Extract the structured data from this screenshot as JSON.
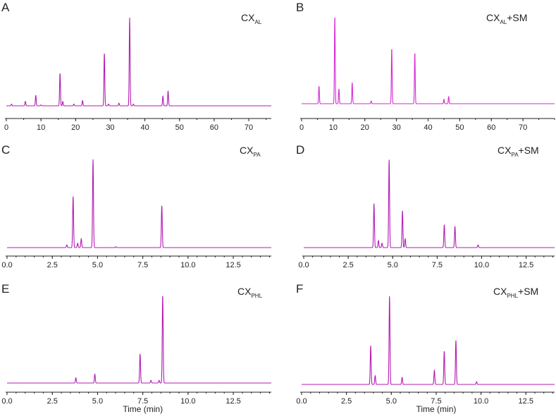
{
  "chart_data": [
    {
      "panel": "A",
      "type": "line",
      "title": {
        "main": "CX",
        "sub": "AL",
        "suffix": ""
      },
      "xlabel": "",
      "xlim": [
        0,
        76.5
      ],
      "xticks": [
        "0",
        "10",
        "20",
        "30",
        "40",
        "50",
        "60",
        "70"
      ],
      "xtick_values": [
        0,
        10,
        20,
        30,
        40,
        50,
        60,
        70
      ],
      "minor_step": 5,
      "grid": false,
      "line_color": "#b31cb3",
      "peaks_rt_min": [
        1.5,
        5.5,
        8.5,
        10,
        15.5,
        16.3,
        19.5,
        22,
        28.3,
        29.5,
        32.5,
        35.6,
        36.7,
        45.2,
        46.7
      ],
      "peaks_rel_height": [
        0.02,
        0.05,
        0.12,
        0.01,
        0.37,
        0.05,
        0.02,
        0.06,
        0.6,
        0.02,
        0.03,
        1.0,
        0.02,
        0.11,
        0.17
      ]
    },
    {
      "panel": "B",
      "type": "line",
      "title": {
        "main": "CX",
        "sub": "AL",
        "suffix": "+SM"
      },
      "xlabel": "",
      "xlim": [
        0,
        80
      ],
      "xticks": [
        "0",
        "10",
        "20",
        "30",
        "40",
        "50",
        "60",
        "70"
      ],
      "xtick_values": [
        0,
        10,
        20,
        30,
        40,
        50,
        60,
        70
      ],
      "minor_step": 5,
      "grid": false,
      "line_color": "#d42ad4",
      "peaks_rt_min": [
        5.5,
        10.5,
        11.8,
        16,
        22,
        28.5,
        35.8,
        45,
        46.5
      ],
      "peaks_rel_height": [
        0.2,
        1.0,
        0.17,
        0.24,
        0.03,
        0.63,
        0.58,
        0.05,
        0.08
      ]
    },
    {
      "panel": "C",
      "type": "line",
      "title": {
        "main": "CX",
        "sub": "PA",
        "suffix": ""
      },
      "xlabel": "",
      "xlim": [
        0,
        14.6
      ],
      "xticks": [
        "0.0",
        "2.5",
        "5.0",
        "7.5",
        "10.0",
        "12.5"
      ],
      "xtick_values": [
        0,
        2.5,
        5,
        7.5,
        10,
        12.5
      ],
      "minor_step": 0.5,
      "grid": false,
      "line_color": "#b31cb3",
      "peaks_rt_min": [
        3.3,
        3.65,
        3.9,
        4.1,
        4.75,
        6.0,
        8.55
      ],
      "peaks_rel_height": [
        0.03,
        0.58,
        0.05,
        0.1,
        1.0,
        0.01,
        0.48
      ]
    },
    {
      "panel": "D",
      "type": "line",
      "title": {
        "main": "CX",
        "sub": "PA",
        "suffix": "+SM"
      },
      "xlabel": "",
      "xlim": [
        0,
        14.1
      ],
      "xticks": [
        "0.0",
        "2.5",
        "5.0",
        "7.5",
        "10.0",
        "12.5"
      ],
      "xtick_values": [
        0,
        2.5,
        5,
        7.5,
        10,
        12.5
      ],
      "minor_step": 0.5,
      "grid": false,
      "line_color": "#b31cb3",
      "peaks_rt_min": [
        3.95,
        4.2,
        4.4,
        4.8,
        5.55,
        5.7,
        7.9,
        8.5,
        9.8
      ],
      "peaks_rel_height": [
        0.5,
        0.08,
        0.05,
        1.0,
        0.42,
        0.1,
        0.26,
        0.24,
        0.03
      ]
    },
    {
      "panel": "E",
      "type": "line",
      "title": {
        "main": "CX",
        "sub": "PHL",
        "suffix": ""
      },
      "xlabel": "Time (min)",
      "xlim": [
        0,
        14.6
      ],
      "xticks": [
        "0.0",
        "2.5",
        "5.0",
        "7.5",
        "10.0",
        "12.5"
      ],
      "xtick_values": [
        0,
        2.5,
        5,
        7.5,
        10,
        12.5
      ],
      "minor_step": 0.5,
      "grid": false,
      "line_color": "#b31cb3",
      "peaks_rt_min": [
        3.8,
        4.85,
        7.35,
        7.95,
        8.4,
        8.6
      ],
      "peaks_rel_height": [
        0.06,
        0.1,
        0.33,
        0.03,
        0.03,
        1.0
      ]
    },
    {
      "panel": "F",
      "type": "line",
      "title": {
        "main": "CX",
        "sub": "PHL",
        "suffix": "+SM"
      },
      "xlabel": "Time (min)",
      "xlim": [
        0,
        14.1
      ],
      "xticks": [
        "0.0",
        "2.5",
        "5.0",
        "7.5",
        "10.0",
        "12.5"
      ],
      "xtick_values": [
        0,
        2.5,
        5,
        7.5,
        10,
        12.5
      ],
      "minor_step": 0.5,
      "grid": false,
      "line_color": "#b31cb3",
      "peaks_rt_min": [
        3.85,
        4.1,
        4.9,
        5.6,
        7.4,
        7.95,
        8.6,
        9.75
      ],
      "peaks_rel_height": [
        0.44,
        0.1,
        1.0,
        0.08,
        0.16,
        0.38,
        0.5,
        0.03
      ]
    }
  ]
}
